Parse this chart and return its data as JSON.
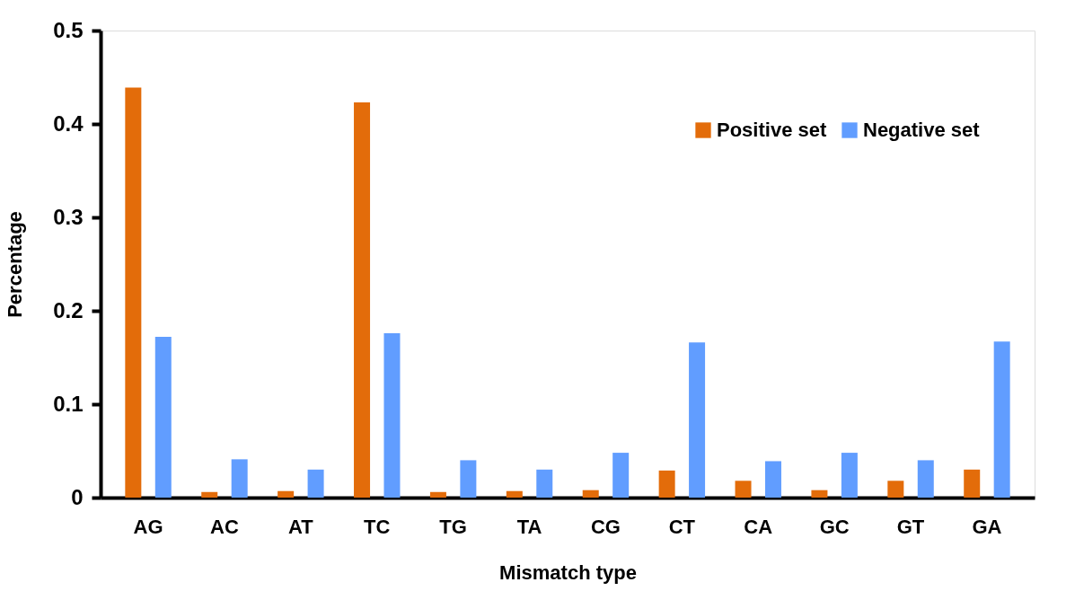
{
  "chart_data": {
    "type": "bar",
    "xlabel": "Mismatch type",
    "ylabel": "Percentage",
    "categories": [
      "AG",
      "AC",
      "AT",
      "TC",
      "TG",
      "TA",
      "CG",
      "CT",
      "CA",
      "GC",
      "GT",
      "GA"
    ],
    "series": [
      {
        "name": "Positive set",
        "color": "#e36c0a",
        "values": [
          0.439,
          0.006,
          0.007,
          0.423,
          0.006,
          0.007,
          0.008,
          0.029,
          0.018,
          0.008,
          0.018,
          0.03
        ]
      },
      {
        "name": "Negative set",
        "color": "#619dff",
        "values": [
          0.172,
          0.041,
          0.03,
          0.176,
          0.04,
          0.03,
          0.048,
          0.166,
          0.039,
          0.048,
          0.04,
          0.167
        ]
      }
    ],
    "ylim": [
      0,
      0.5
    ],
    "yticks": [
      0,
      0.1,
      0.2,
      0.3,
      0.4,
      0.5
    ],
    "grid": false,
    "legend": "top right"
  }
}
